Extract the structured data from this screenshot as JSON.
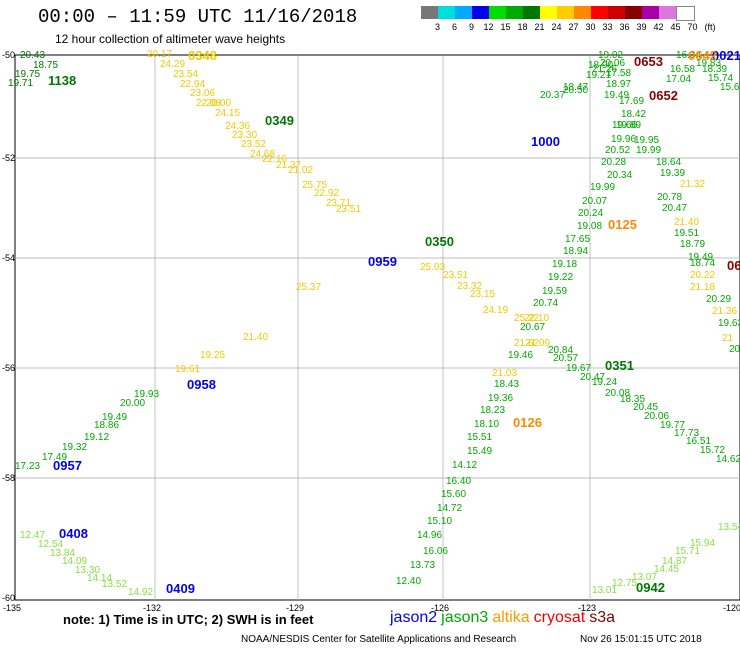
{
  "header": {
    "title": "00:00 – 11:59 UTC 11/16/2018",
    "subtitle": "12 hour collection of altimeter wave heights"
  },
  "scale": {
    "unit": "(ft)",
    "labels": [
      "3",
      "6",
      "9",
      "12",
      "15",
      "18",
      "21",
      "24",
      "27",
      "30",
      "33",
      "36",
      "39",
      "42",
      "45",
      "70"
    ],
    "colors": [
      "#777777",
      "#00dddd",
      "#00aaff",
      "#0000ee",
      "#00dd00",
      "#00aa00",
      "#007700",
      "#ffff00",
      "#ffcc00",
      "#ff8800",
      "#ff0000",
      "#cc0000",
      "#880000",
      "#aa00aa",
      "#dd77dd",
      "#ffffff"
    ]
  },
  "map": {
    "lat_labels": [
      "-50",
      "-52",
      "-54",
      "-56",
      "-58",
      "-60"
    ],
    "lon_labels": [
      "-135",
      "-132",
      "-129",
      "-126",
      "-123",
      "-120"
    ],
    "tracks": [
      {
        "sat": "jason3",
        "time": "1138",
        "color": "#007700",
        "values": [
          "20.43",
          "18.75",
          "19.75",
          "19.71"
        ],
        "lbl": [
          [
            20,
            58
          ],
          [
            33,
            68
          ],
          [
            15,
            77
          ],
          [
            8,
            86
          ]
        ],
        "tpos": [
          48,
          85
        ]
      },
      {
        "sat": "altika",
        "color": "#eecc00",
        "values": [
          "20.17",
          "24.29",
          "23.54",
          "22.94",
          "23.06",
          "22.08",
          "20.00",
          "24.15",
          "24.36",
          "23.30",
          "23.52",
          "24.68",
          "22.16",
          "21.37",
          "21.02",
          "25.75",
          "22.92",
          "23.71",
          "23.51"
        ],
        "lbl": [
          [
            147,
            57
          ],
          [
            160,
            67
          ],
          [
            173,
            77
          ],
          [
            180,
            87
          ],
          [
            190,
            96
          ],
          [
            196,
            106
          ],
          [
            206,
            106
          ],
          [
            215,
            116
          ],
          [
            225,
            129
          ],
          [
            232,
            138
          ],
          [
            241,
            147
          ],
          [
            250,
            157
          ],
          [
            262,
            162
          ],
          [
            276,
            168
          ],
          [
            288,
            173
          ],
          [
            302,
            188
          ],
          [
            314,
            196
          ],
          [
            326,
            206
          ],
          [
            336,
            212
          ]
        ],
        "tpos": [
          188,
          60
        ],
        "time": "0348"
      },
      {
        "sat": "jason3",
        "time": "0349",
        "color": "#007700",
        "tpos": [
          265,
          125
        ]
      },
      {
        "sat": "jason3",
        "color": "#00aa00",
        "values": [
          "19.02",
          "18.90",
          "21.26",
          "20.06",
          "19.21",
          "17.58",
          "18.97",
          "19.49",
          "20.50",
          "18.47",
          "20.37"
        ],
        "lbl": [
          [
            598,
            58
          ],
          [
            588,
            68
          ],
          [
            592,
            72
          ],
          [
            600,
            66
          ],
          [
            586,
            78
          ],
          [
            606,
            76
          ],
          [
            606,
            87
          ],
          [
            604,
            98
          ],
          [
            563,
            93
          ],
          [
            563,
            90
          ],
          [
            540,
            98
          ]
        ],
        "tpos": [
          0,
          0
        ]
      },
      {
        "sat": "cryosat",
        "time": "0653",
        "color": "#880000",
        "tpos": [
          634,
          66
        ]
      },
      {
        "sat": "cryosat",
        "time": "0652",
        "color": "#880000",
        "tpos": [
          649,
          100
        ]
      },
      {
        "sat": "jason3",
        "color": "#00aa00",
        "values": [
          "16.34",
          "16.58",
          "17.04",
          "17.69",
          "18.42",
          "19.66",
          "19.89",
          "19.95",
          "19.96",
          "20.52",
          "19.99",
          "20.28",
          "18.64",
          "20.34",
          "19.39",
          "19.99",
          "20.07",
          "20.24",
          "19.08",
          "17.65",
          "18.94",
          "19.22",
          "19.18",
          "19.59",
          "20.74",
          "20.67"
        ],
        "lbl": [
          [
            676,
            58
          ],
          [
            670,
            72
          ],
          [
            666,
            82
          ],
          [
            619,
            104
          ],
          [
            621,
            117
          ],
          [
            612,
            128
          ],
          [
            616,
            128
          ],
          [
            634,
            143
          ],
          [
            611,
            142
          ],
          [
            605,
            153
          ],
          [
            636,
            153
          ],
          [
            601,
            165
          ],
          [
            656,
            165
          ],
          [
            607,
            178
          ],
          [
            660,
            176
          ],
          [
            590,
            190
          ],
          [
            582,
            204
          ],
          [
            578,
            216
          ],
          [
            577,
            229
          ],
          [
            565,
            242
          ],
          [
            563,
            254
          ],
          [
            548,
            280
          ],
          [
            552,
            267
          ],
          [
            542,
            294
          ],
          [
            533,
            306
          ],
          [
            520,
            330
          ]
        ],
        "tpos": [
          0,
          0
        ]
      },
      {
        "sat": "jason2",
        "time": "1000",
        "color": "#0000ee",
        "tpos": [
          531,
          146
        ]
      },
      {
        "sat": "jason3",
        "color": "#00aa00",
        "values": [
          "20.78",
          "20.47",
          "19.51",
          "18.79",
          "19.49",
          "18.74",
          "20.29",
          "19.63",
          "20"
        ],
        "lbl": [
          [
            657,
            200
          ],
          [
            662,
            211
          ],
          [
            674,
            236
          ],
          [
            680,
            247
          ],
          [
            688,
            260
          ],
          [
            690,
            266
          ],
          [
            706,
            302
          ],
          [
            718,
            326
          ],
          [
            729,
            352
          ]
        ],
        "tpos": [
          0,
          0
        ]
      },
      {
        "sat": "altika",
        "color": "#eecc00",
        "values": [
          "21.32",
          "21.40",
          "20.22",
          "21.18",
          "21.36",
          "21"
        ],
        "lbl": [
          [
            680,
            187
          ],
          [
            674,
            225
          ],
          [
            690,
            278
          ],
          [
            690,
            290
          ],
          [
            712,
            314
          ],
          [
            722,
            341
          ]
        ],
        "tpos": [
          0,
          0
        ]
      },
      {
        "sat": "altika",
        "time": "0125",
        "color": "#ff8800",
        "tpos": [
          608,
          229
        ]
      },
      {
        "sat": "jason3",
        "time": "0350",
        "color": "#007700",
        "tpos": [
          425,
          246
        ]
      },
      {
        "sat": "jason2",
        "time": "0959",
        "color": "#0000ee",
        "tpos": [
          368,
          266
        ]
      },
      {
        "sat": "altika",
        "color": "#eecc00",
        "values": [
          "25.03",
          "23.51",
          "23.32",
          "23.15",
          "24.19",
          "25.22",
          "22.10",
          "21.62",
          "21.09",
          "21.03"
        ],
        "lbl": [
          [
            420,
            270
          ],
          [
            443,
            278
          ],
          [
            457,
            289
          ],
          [
            470,
            297
          ],
          [
            483,
            313
          ],
          [
            514,
            321
          ],
          [
            524,
            321
          ],
          [
            514,
            346
          ],
          [
            525,
            346
          ],
          [
            492,
            376
          ]
        ],
        "tpos": [
          0,
          0
        ]
      },
      {
        "sat": "jason3",
        "color": "#00aa00",
        "values": [
          "20.84",
          "19.46",
          "20.57",
          "19.67",
          "20.47",
          "19.24",
          "20.08",
          "18.35",
          "20.45",
          "20.06",
          "19.77",
          "17.73",
          "16.51",
          "15.72",
          "14.62"
        ],
        "lbl": [
          [
            548,
            353
          ],
          [
            508,
            358
          ],
          [
            553,
            361
          ],
          [
            566,
            371
          ],
          [
            580,
            380
          ],
          [
            592,
            385
          ],
          [
            605,
            396
          ],
          [
            620,
            402
          ],
          [
            633,
            410
          ],
          [
            644,
            419
          ],
          [
            660,
            428
          ],
          [
            674,
            436
          ],
          [
            686,
            444
          ],
          [
            700,
            453
          ],
          [
            716,
            462
          ]
        ],
        "tpos": [
          0,
          0
        ]
      },
      {
        "sat": "jason3",
        "time": "0351",
        "color": "#007700",
        "tpos": [
          605,
          370
        ]
      },
      {
        "sat": "jason3",
        "color": "#00aa00",
        "values": [
          "18.43",
          "19.36",
          "18.23",
          "18.10",
          "15.51",
          "15.49",
          "14.12",
          "16.40",
          "15.60",
          "14.72",
          "15.10",
          "14.96",
          "16.06",
          "13.73",
          "12.40"
        ],
        "lbl": [
          [
            494,
            387
          ],
          [
            488,
            401
          ],
          [
            480,
            413
          ],
          [
            474,
            427
          ],
          [
            467,
            440
          ],
          [
            467,
            454
          ],
          [
            452,
            468
          ],
          [
            446,
            484
          ],
          [
            441,
            497
          ],
          [
            437,
            511
          ],
          [
            427,
            524
          ],
          [
            417,
            538
          ],
          [
            423,
            554
          ],
          [
            410,
            568
          ],
          [
            396,
            584
          ]
        ],
        "tpos": [
          0,
          0
        ]
      },
      {
        "sat": "altika",
        "time": "0126",
        "color": "#ff8800",
        "tpos": [
          513,
          427
        ]
      },
      {
        "sat": "altika",
        "color": "#eecc00",
        "values": [
          "25.37",
          "21.40",
          "19.61",
          "19.25"
        ],
        "lbl": [
          [
            296,
            290
          ],
          [
            243,
            340
          ],
          [
            175,
            372
          ],
          [
            200,
            358
          ]
        ],
        "tpos": [
          0,
          0
        ]
      },
      {
        "sat": "jason2",
        "time": "0958",
        "color": "#0000ee",
        "tpos": [
          187,
          389
        ]
      },
      {
        "sat": "jason3",
        "color": "#00aa00",
        "values": [
          "19.93",
          "20.00",
          "19.49",
          "18.86",
          "19.12",
          "19.32",
          "17.49",
          "17.23"
        ],
        "lbl": [
          [
            134,
            397
          ],
          [
            120,
            406
          ],
          [
            102,
            420
          ],
          [
            94,
            428
          ],
          [
            84,
            440
          ],
          [
            62,
            450
          ],
          [
            42,
            460
          ],
          [
            15,
            469
          ]
        ],
        "tpos": [
          0,
          0
        ]
      },
      {
        "sat": "jason2",
        "time": "0957",
        "color": "#0000ee",
        "tpos": [
          53,
          470
        ]
      },
      {
        "sat": "jason3",
        "color": "#88dd44",
        "values": [
          "12.47",
          "12.54",
          "13.84",
          "14.09",
          "13.30",
          "14.14",
          "13.52",
          "14.92"
        ],
        "lbl": [
          [
            20,
            538
          ],
          [
            38,
            547
          ],
          [
            50,
            556
          ],
          [
            62,
            564
          ],
          [
            75,
            573
          ],
          [
            87,
            581
          ],
          [
            102,
            587
          ],
          [
            128,
            595
          ]
        ],
        "tpos": [
          0,
          0
        ]
      },
      {
        "sat": "jason2",
        "time": "0408",
        "color": "#0000ee",
        "tpos": [
          59,
          538
        ]
      },
      {
        "sat": "jason2",
        "time": "0409",
        "color": "#0000ee",
        "tpos": [
          166,
          593
        ]
      },
      {
        "sat": "jason3",
        "color": "#88dd44",
        "values": [
          "13.54",
          "15.94",
          "15.71",
          "14.87",
          "14.45",
          "13.07",
          "12.75",
          "13.01"
        ],
        "lbl": [
          [
            718,
            530
          ],
          [
            690,
            546
          ],
          [
            675,
            554
          ],
          [
            662,
            564
          ],
          [
            654,
            572
          ],
          [
            632,
            580
          ],
          [
            612,
            586
          ],
          [
            592,
            593
          ]
        ],
        "tpos": [
          0,
          0
        ]
      },
      {
        "sat": "jason3",
        "time": "0942",
        "color": "#007700",
        "tpos": [
          636,
          592
        ]
      }
    ],
    "edge_times": [
      {
        "time": "0021",
        "color": "#0000ee",
        "pos": [
          712,
          60
        ]
      },
      {
        "time": "0642",
        "color": "#ff8800",
        "pos": [
          688,
          60
        ]
      },
      {
        "time": "06",
        "color": "#880000",
        "pos": [
          727,
          270
        ]
      }
    ],
    "edge_values": [
      {
        "v": "18.39",
        "pos": [
          702,
          72
        ],
        "color": "#00aa00"
      },
      {
        "v": "15.74",
        "pos": [
          708,
          81
        ],
        "color": "#00aa00"
      },
      {
        "v": "15.66",
        "pos": [
          720,
          90
        ],
        "color": "#00aa00"
      },
      {
        "v": "19.83",
        "pos": [
          696,
          66
        ],
        "color": "#00aa00"
      }
    ]
  },
  "footer": {
    "note": "note:  1) Time is in UTC;  2) SWH is in feet",
    "satellites": [
      {
        "name": "jason2",
        "color": "#0000ee"
      },
      {
        "name": "jason3",
        "color": "#00aa00"
      },
      {
        "name": "altika",
        "color": "#ff9900"
      },
      {
        "name": "cryosat",
        "color": "#ee0000"
      },
      {
        "name": "s3a",
        "color": "#880000"
      }
    ],
    "credit": "NOAA/NESDIS Center for Satellite Applications and Research",
    "stamp": "Nov 26 15:01:15 UTC 2018"
  }
}
